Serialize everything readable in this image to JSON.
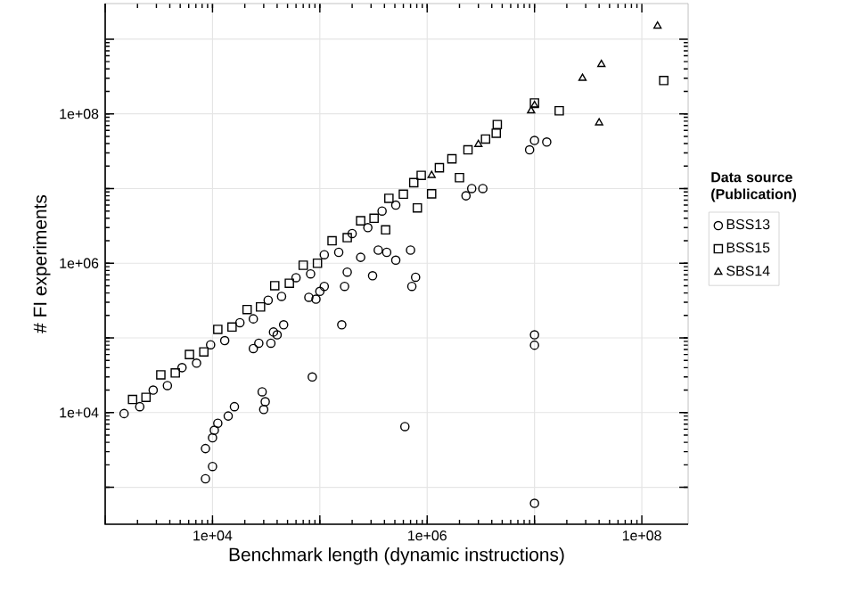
{
  "chart_data": {
    "type": "scatter",
    "xlabel": "Benchmark length (dynamic instructions)",
    "ylabel": "# FI experiments",
    "legend_title": "Data source (Publication)",
    "log": "xy",
    "grid": true,
    "legend": "right",
    "xlim": [
      1000,
      270000000
    ],
    "ylim": [
      320,
      3000000000
    ],
    "xticks": [
      {
        "value": 1000,
        "label": null
      },
      {
        "value": 10000,
        "label": "1e+04"
      },
      {
        "value": 100000,
        "label": null
      },
      {
        "value": 1000000,
        "label": "1e+06"
      },
      {
        "value": 10000000,
        "label": null
      },
      {
        "value": 100000000,
        "label": "1e+08"
      }
    ],
    "yticks": [
      {
        "value": 1000,
        "label": null
      },
      {
        "value": 10000,
        "label": "1e+04"
      },
      {
        "value": 100000,
        "label": null
      },
      {
        "value": 1000000,
        "label": "1e+06"
      },
      {
        "value": 10000000,
        "label": null
      },
      {
        "value": 100000000,
        "label": "1e+08"
      },
      {
        "value": 1000000000,
        "label": null
      }
    ],
    "series": [
      {
        "name": "BSS13",
        "color": "#000000",
        "marker": "circle",
        "x": [
          1500,
          2100,
          2800,
          3800,
          5200,
          7100,
          9600,
          13000,
          18000,
          24000,
          33000,
          44000,
          60000,
          82000,
          110000,
          150000,
          200000,
          280000,
          380000,
          510000,
          8600,
          10000,
          8600,
          10000,
          10400,
          11200,
          14000,
          16000,
          29000,
          31000,
          30000,
          85000,
          160000,
          620000,
          24000,
          27000,
          35000,
          37000,
          46000,
          40000,
          92000,
          110000,
          170000,
          700000,
          510000,
          420000,
          350000,
          310000,
          780000,
          720000,
          240000,
          180000,
          79000,
          100000,
          9000000,
          10000000,
          13000000,
          2300000,
          2600000,
          3300000,
          10000000,
          10000000,
          10000000
        ],
        "values": [
          9700,
          12000,
          20000,
          23000,
          40000,
          46000,
          81000,
          92000,
          160000,
          180000,
          320000,
          360000,
          640000,
          720000,
          1300000,
          1400000,
          2500000,
          3000000,
          5000000,
          6000000,
          1300,
          1900,
          3300,
          4600,
          5800,
          7200,
          9000,
          12000,
          19000,
          14000,
          11000,
          30000,
          150000,
          6500,
          72000,
          85000,
          85000,
          120000,
          150000,
          110000,
          330000,
          490000,
          490000,
          1500000,
          1100000,
          1400000,
          1500000,
          680000,
          650000,
          490000,
          1200000,
          760000,
          350000,
          420000,
          33000000,
          44000000,
          42000000,
          8000000,
          10000000,
          10000000,
          80000,
          110000,
          610
        ]
      },
      {
        "name": "BSS15",
        "color": "#000000",
        "marker": "square",
        "x": [
          1800,
          2400,
          3300,
          4500,
          6100,
          8300,
          11200,
          15200,
          21000,
          28000,
          38000,
          52000,
          70000,
          95000,
          130000,
          180000,
          240000,
          320000,
          440000,
          600000,
          750000,
          880000,
          810000,
          410000,
          2000000,
          1100000,
          1700000,
          1300000,
          2400000,
          3500000,
          4400000,
          4500000,
          17000000,
          10000000,
          160000000
        ],
        "values": [
          15000,
          16000,
          32000,
          34000,
          60000,
          65000,
          130000,
          140000,
          240000,
          260000,
          500000,
          540000,
          940000,
          1000000,
          2000000,
          2200000,
          3700000,
          4000000,
          7400000,
          8400000,
          12000000,
          15000000,
          5500000,
          2800000,
          14000000,
          8500000,
          25000000,
          19000000,
          33000000,
          46000000,
          55000000,
          72000000,
          110000000,
          140000000,
          280000000
        ]
      },
      {
        "name": "SBS14",
        "color": "#000000",
        "marker": "triangle",
        "x": [
          140000000,
          42000000,
          28000000,
          40000000,
          10000000,
          9300000,
          1100000,
          3000000
        ],
        "values": [
          1500000000,
          460000000,
          300000000,
          76000000,
          130000000,
          110000000,
          15000000,
          39000000
        ]
      }
    ]
  }
}
